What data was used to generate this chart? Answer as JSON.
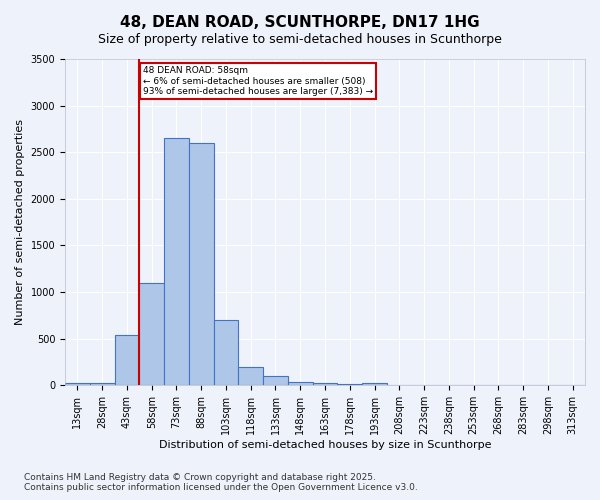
{
  "title": "48, DEAN ROAD, SCUNTHORPE, DN17 1HG",
  "subtitle": "Size of property relative to semi-detached houses in Scunthorpe",
  "xlabel": "Distribution of semi-detached houses by size in Scunthorpe",
  "ylabel": "Number of semi-detached properties",
  "footnote1": "Contains HM Land Registry data © Crown copyright and database right 2025.",
  "footnote2": "Contains public sector information licensed under the Open Government Licence v3.0.",
  "bin_labels": [
    "13sqm",
    "28sqm",
    "43sqm",
    "58sqm",
    "73sqm",
    "88sqm",
    "103sqm",
    "118sqm",
    "133sqm",
    "148sqm",
    "163sqm",
    "178sqm",
    "193sqm",
    "208sqm",
    "223sqm",
    "238sqm",
    "253sqm",
    "268sqm",
    "283sqm",
    "298sqm",
    "313sqm"
  ],
  "bar_values": [
    30,
    30,
    540,
    1100,
    2650,
    2600,
    700,
    200,
    100,
    35,
    20,
    10,
    25,
    0,
    0,
    0,
    0,
    0,
    0,
    0,
    0
  ],
  "bar_color": "#aec6e8",
  "bar_edge_color": "#4472c4",
  "vline_color": "#cc0000",
  "vline_pos": 2.5,
  "annotation_text": "48 DEAN ROAD: 58sqm\n← 6% of semi-detached houses are smaller (508)\n93% of semi-detached houses are larger (7,383) →",
  "annotation_box_color": "#cc0000",
  "ylim": [
    0,
    3500
  ],
  "yticks": [
    0,
    500,
    1000,
    1500,
    2000,
    2500,
    3000,
    3500
  ],
  "background_color": "#eef2fb",
  "grid_color": "#ffffff",
  "title_fontsize": 11,
  "subtitle_fontsize": 9,
  "axis_label_fontsize": 8,
  "tick_fontsize": 7,
  "annotation_fontsize": 6.5,
  "footnote_fontsize": 6.5
}
